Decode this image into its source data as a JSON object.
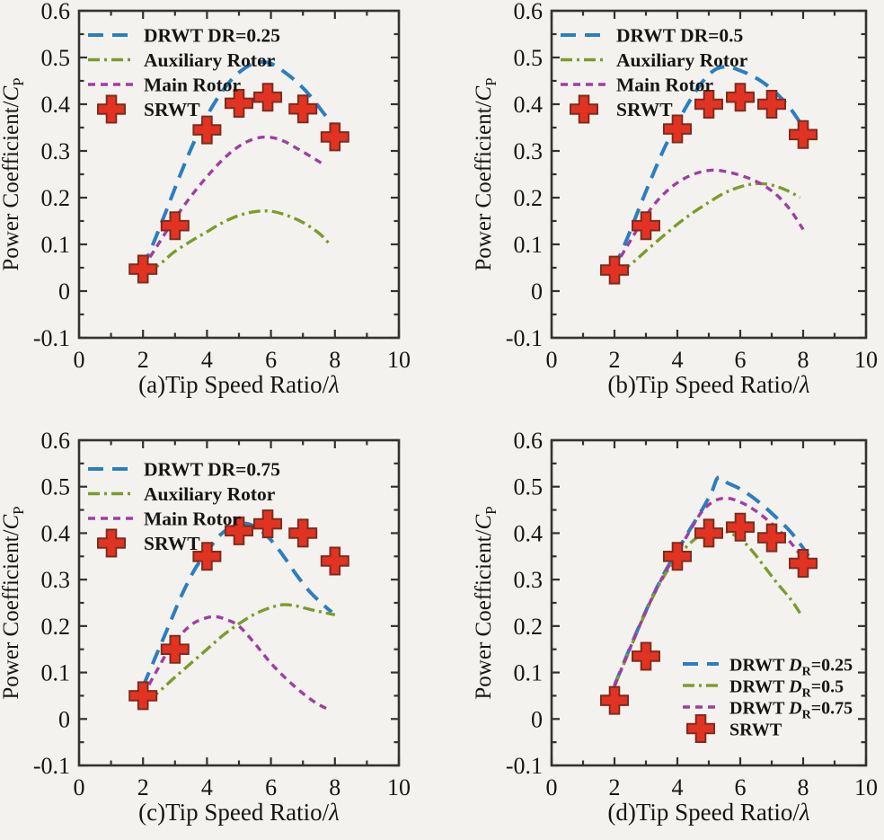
{
  "figure": {
    "background": "#f3f2ee",
    "axis_color": "#333333",
    "text_color": "#151515"
  },
  "colors": {
    "blue": "#2b7ec0",
    "green": "#7d9b2e",
    "purple": "#a03da3",
    "red_fill": "#e23322",
    "red_stroke": "#7e2c1e"
  },
  "axes_common": {
    "xlim": [
      0,
      10
    ],
    "ylim": [
      -0.1,
      0.6
    ],
    "x_major_ticks": [
      0,
      2,
      4,
      6,
      8,
      10
    ],
    "x_minor_ticks": [
      1,
      3,
      5,
      7,
      9
    ],
    "y_major_ticks": [
      -0.1,
      0,
      0.1,
      0.2,
      0.3,
      0.4,
      0.5,
      0.6
    ],
    "y_tick_labels": [
      "-0.1",
      "0",
      "0.1",
      "0.2",
      "0.3",
      "0.4",
      "0.5",
      "0.6"
    ],
    "y_minor_ticks": [
      -0.05,
      0.05,
      0.15,
      0.25,
      0.35,
      0.45,
      0.55
    ],
    "grid": false,
    "ylabel_prefix": "Power Coefficient/",
    "ylabel_var": "C",
    "ylabel_sub": "P"
  },
  "chart_data": [
    {
      "panel": "a",
      "type": "line",
      "xlabel_prefix": "(a)Tip Speed Ratio/",
      "xlabel_symbol": "λ",
      "legend_position": "top-left",
      "series": [
        {
          "name": "DRWT DR=0.25",
          "color": "blue",
          "dash": "long-dash",
          "points": [
            [
              2,
              0.05
            ],
            [
              2.4,
              0.115
            ],
            [
              2.8,
              0.185
            ],
            [
              3.2,
              0.255
            ],
            [
              3.6,
              0.32
            ],
            [
              4,
              0.375
            ],
            [
              4.4,
              0.42
            ],
            [
              4.8,
              0.455
            ],
            [
              5.2,
              0.478
            ],
            [
              5.6,
              0.49
            ],
            [
              6,
              0.487
            ],
            [
              6.4,
              0.47
            ],
            [
              6.8,
              0.448
            ],
            [
              7.2,
              0.42
            ],
            [
              7.6,
              0.385
            ],
            [
              8,
              0.35
            ],
            [
              8.2,
              0.33
            ]
          ]
        },
        {
          "name": "Auxiliary Rotor",
          "color": "green",
          "dash": "dash-dot",
          "points": [
            [
              2.2,
              0.04
            ],
            [
              2.6,
              0.062
            ],
            [
              3,
              0.085
            ],
            [
              3.5,
              0.107
            ],
            [
              4,
              0.127
            ],
            [
              4.5,
              0.147
            ],
            [
              5,
              0.162
            ],
            [
              5.5,
              0.17
            ],
            [
              6,
              0.171
            ],
            [
              6.5,
              0.162
            ],
            [
              7,
              0.147
            ],
            [
              7.5,
              0.124
            ],
            [
              7.8,
              0.103
            ]
          ]
        },
        {
          "name": "Main Rotor",
          "color": "purple",
          "dash": "short-dash",
          "points": [
            [
              2,
              0.05
            ],
            [
              2.4,
              0.092
            ],
            [
              2.8,
              0.135
            ],
            [
              3.2,
              0.175
            ],
            [
              3.6,
              0.212
            ],
            [
              4,
              0.245
            ],
            [
              4.4,
              0.275
            ],
            [
              4.8,
              0.3
            ],
            [
              5.2,
              0.318
            ],
            [
              5.6,
              0.328
            ],
            [
              6,
              0.329
            ],
            [
              6.4,
              0.321
            ],
            [
              6.8,
              0.306
            ],
            [
              7.2,
              0.29
            ],
            [
              7.6,
              0.273
            ]
          ]
        },
        {
          "name": "SRWT",
          "color": "red",
          "marker": "cross",
          "points": [
            [
              2,
              0.047
            ],
            [
              3,
              0.14
            ],
            [
              4,
              0.345
            ],
            [
              5,
              0.402
            ],
            [
              5.9,
              0.415
            ],
            [
              7,
              0.39
            ],
            [
              8,
              0.33
            ]
          ]
        }
      ]
    },
    {
      "panel": "b",
      "type": "line",
      "xlabel_prefix": "(b)Tip Speed Ratio/",
      "xlabel_symbol": "λ",
      "legend_position": "top-left",
      "series": [
        {
          "name": "DRWT DR=0.5",
          "color": "blue",
          "dash": "long-dash",
          "points": [
            [
              2,
              0.05
            ],
            [
              2.4,
              0.112
            ],
            [
              2.8,
              0.18
            ],
            [
              3.2,
              0.246
            ],
            [
              3.6,
              0.308
            ],
            [
              4,
              0.36
            ],
            [
              4.4,
              0.408
            ],
            [
              4.8,
              0.448
            ],
            [
              5.2,
              0.474
            ],
            [
              5.6,
              0.48
            ],
            [
              6,
              0.472
            ],
            [
              6.4,
              0.46
            ],
            [
              6.8,
              0.443
            ],
            [
              7.2,
              0.42
            ],
            [
              7.6,
              0.39
            ],
            [
              8,
              0.352
            ],
            [
              8.25,
              0.335
            ]
          ]
        },
        {
          "name": "Auxiliary Rotor",
          "color": "green",
          "dash": "dash-dot",
          "points": [
            [
              2.2,
              0.04
            ],
            [
              2.6,
              0.062
            ],
            [
              3,
              0.086
            ],
            [
              3.5,
              0.115
            ],
            [
              4,
              0.143
            ],
            [
              4.5,
              0.168
            ],
            [
              5,
              0.19
            ],
            [
              5.5,
              0.21
            ],
            [
              6,
              0.223
            ],
            [
              6.5,
              0.23
            ],
            [
              7,
              0.227
            ],
            [
              7.5,
              0.215
            ],
            [
              7.9,
              0.2
            ]
          ]
        },
        {
          "name": "Main Rotor",
          "color": "purple",
          "dash": "short-dash",
          "points": [
            [
              2,
              0.05
            ],
            [
              2.4,
              0.096
            ],
            [
              2.8,
              0.14
            ],
            [
              3.2,
              0.18
            ],
            [
              3.6,
              0.21
            ],
            [
              4,
              0.232
            ],
            [
              4.4,
              0.247
            ],
            [
              4.8,
              0.256
            ],
            [
              5.2,
              0.259
            ],
            [
              5.6,
              0.255
            ],
            [
              6,
              0.248
            ],
            [
              6.4,
              0.238
            ],
            [
              6.8,
              0.224
            ],
            [
              7.2,
              0.203
            ],
            [
              7.6,
              0.173
            ],
            [
              8,
              0.132
            ]
          ]
        },
        {
          "name": "SRWT",
          "color": "red",
          "marker": "cross",
          "points": [
            [
              2,
              0.045
            ],
            [
              3,
              0.14
            ],
            [
              4,
              0.347
            ],
            [
              5,
              0.4
            ],
            [
              6,
              0.415
            ],
            [
              7,
              0.4
            ],
            [
              8,
              0.335
            ]
          ]
        }
      ]
    },
    {
      "panel": "c",
      "type": "line",
      "xlabel_prefix": "(c)Tip Speed Ratio/",
      "xlabel_symbol": "λ",
      "legend_position": "top-left",
      "series": [
        {
          "name": "DRWT DR=0.75",
          "color": "blue",
          "dash": "long-dash",
          "points": [
            [
              2,
              0.07
            ],
            [
              2.4,
              0.135
            ],
            [
              2.8,
              0.2
            ],
            [
              3.2,
              0.265
            ],
            [
              3.6,
              0.32
            ],
            [
              4,
              0.36
            ],
            [
              4.4,
              0.395
            ],
            [
              4.8,
              0.415
            ],
            [
              5.2,
              0.421
            ],
            [
              5.6,
              0.41
            ],
            [
              6,
              0.385
            ],
            [
              6.4,
              0.35
            ],
            [
              6.8,
              0.31
            ],
            [
              7.2,
              0.275
            ],
            [
              7.6,
              0.248
            ],
            [
              7.9,
              0.23
            ]
          ]
        },
        {
          "name": "Auxiliary Rotor",
          "color": "green",
          "dash": "dash-dot",
          "points": [
            [
              2.2,
              0.04
            ],
            [
              2.6,
              0.065
            ],
            [
              3,
              0.09
            ],
            [
              3.5,
              0.12
            ],
            [
              4,
              0.15
            ],
            [
              4.5,
              0.18
            ],
            [
              5,
              0.205
            ],
            [
              5.5,
              0.226
            ],
            [
              6,
              0.24
            ],
            [
              6.4,
              0.246
            ],
            [
              6.8,
              0.243
            ],
            [
              7.2,
              0.236
            ],
            [
              7.6,
              0.23
            ],
            [
              8,
              0.224
            ]
          ]
        },
        {
          "name": "Main Rotor",
          "color": "purple",
          "dash": "short-dash",
          "points": [
            [
              2,
              0.05
            ],
            [
              2.4,
              0.1
            ],
            [
              2.8,
              0.148
            ],
            [
              3.2,
              0.183
            ],
            [
              3.6,
              0.207
            ],
            [
              4,
              0.218
            ],
            [
              4.3,
              0.22
            ],
            [
              4.6,
              0.214
            ],
            [
              5,
              0.2
            ],
            [
              5.5,
              0.162
            ],
            [
              6,
              0.12
            ],
            [
              6.5,
              0.085
            ],
            [
              7,
              0.055
            ],
            [
              7.4,
              0.035
            ],
            [
              7.8,
              0.02
            ]
          ]
        },
        {
          "name": "SRWT",
          "color": "red",
          "marker": "cross",
          "points": [
            [
              2,
              0.05
            ],
            [
              3,
              0.15
            ],
            [
              4,
              0.35
            ],
            [
              5,
              0.405
            ],
            [
              5.9,
              0.42
            ],
            [
              7,
              0.4
            ],
            [
              8,
              0.34
            ]
          ]
        }
      ]
    },
    {
      "panel": "d",
      "type": "line",
      "xlabel_prefix": "(d)Tip Speed Ratio/",
      "xlabel_symbol": "λ",
      "legend_position": "bottom-right",
      "series": [
        {
          "name": "DRWT DR=0.25",
          "rich_label": {
            "pre": "DRWT ",
            "var": "D",
            "sub": "R",
            "post": "=0.25"
          },
          "color": "blue",
          "dash": "long-dash",
          "points": [
            [
              2,
              0.072
            ],
            [
              2.4,
              0.138
            ],
            [
              2.8,
              0.202
            ],
            [
              3.2,
              0.262
            ],
            [
              3.6,
              0.316
            ],
            [
              4,
              0.362
            ],
            [
              4.4,
              0.408
            ],
            [
              4.8,
              0.452
            ],
            [
              5.1,
              0.49
            ],
            [
              5.3,
              0.52
            ],
            [
              5.6,
              0.508
            ],
            [
              6,
              0.495
            ],
            [
              6.4,
              0.477
            ],
            [
              6.8,
              0.455
            ],
            [
              7.2,
              0.43
            ],
            [
              7.6,
              0.403
            ],
            [
              8,
              0.368
            ],
            [
              8.2,
              0.347
            ]
          ]
        },
        {
          "name": "DRWT DR=0.5",
          "rich_label": {
            "pre": "DRWT ",
            "var": "D",
            "sub": "R",
            "post": "=0.5"
          },
          "color": "green",
          "dash": "dash-dot",
          "points": [
            [
              2,
              0.07
            ],
            [
              2.4,
              0.135
            ],
            [
              2.8,
              0.2
            ],
            [
              3.2,
              0.26
            ],
            [
              3.6,
              0.31
            ],
            [
              4,
              0.348
            ],
            [
              4.4,
              0.378
            ],
            [
              4.8,
              0.398
            ],
            [
              5.2,
              0.408
            ],
            [
              5.6,
              0.402
            ],
            [
              6,
              0.388
            ],
            [
              6.4,
              0.36
            ],
            [
              6.8,
              0.325
            ],
            [
              7.2,
              0.29
            ],
            [
              7.6,
              0.258
            ],
            [
              7.9,
              0.228
            ]
          ]
        },
        {
          "name": "DRWT DR=0.75",
          "rich_label": {
            "pre": "DRWT ",
            "var": "D",
            "sub": "R",
            "post": "=0.75"
          },
          "color": "purple",
          "dash": "short-dash",
          "points": [
            [
              2,
              0.071
            ],
            [
              2.4,
              0.137
            ],
            [
              2.8,
              0.201
            ],
            [
              3.2,
              0.261
            ],
            [
              3.6,
              0.314
            ],
            [
              4,
              0.358
            ],
            [
              4.4,
              0.405
            ],
            [
              4.8,
              0.448
            ],
            [
              5.2,
              0.47
            ],
            [
              5.6,
              0.475
            ],
            [
              6,
              0.467
            ],
            [
              6.4,
              0.452
            ],
            [
              6.8,
              0.432
            ],
            [
              7.2,
              0.408
            ],
            [
              7.6,
              0.38
            ],
            [
              8,
              0.345
            ],
            [
              8.15,
              0.33
            ]
          ]
        },
        {
          "name": "SRWT",
          "color": "red",
          "marker": "cross",
          "points": [
            [
              2,
              0.04
            ],
            [
              3,
              0.135
            ],
            [
              4,
              0.35
            ],
            [
              5,
              0.4
            ],
            [
              6,
              0.413
            ],
            [
              7,
              0.39
            ],
            [
              8,
              0.335
            ]
          ]
        }
      ]
    }
  ]
}
